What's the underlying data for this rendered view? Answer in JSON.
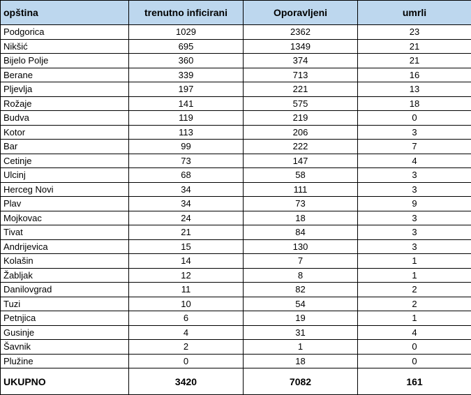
{
  "header": {
    "col1": "opština",
    "col2": "trenutno inficirani",
    "col3": "Oporavljeni",
    "col4": "umrli"
  },
  "rows": [
    {
      "opstina": "Podgorica",
      "inficirani": "1029",
      "oporavljeni": "2362",
      "umrli": "23"
    },
    {
      "opstina": "Nikšić",
      "inficirani": "695",
      "oporavljeni": "1349",
      "umrli": "21"
    },
    {
      "opstina": "Bijelo Polje",
      "inficirani": "360",
      "oporavljeni": "374",
      "umrli": "21"
    },
    {
      "opstina": "Berane",
      "inficirani": "339",
      "oporavljeni": "713",
      "umrli": "16"
    },
    {
      "opstina": "Pljevlja",
      "inficirani": "197",
      "oporavljeni": "221",
      "umrli": "13"
    },
    {
      "opstina": "Rožaje",
      "inficirani": "141",
      "oporavljeni": "575",
      "umrli": "18"
    },
    {
      "opstina": "Budva",
      "inficirani": "119",
      "oporavljeni": "219",
      "umrli": "0"
    },
    {
      "opstina": "Kotor",
      "inficirani": "113",
      "oporavljeni": "206",
      "umrli": "3"
    },
    {
      "opstina": "Bar",
      "inficirani": "99",
      "oporavljeni": "222",
      "umrli": "7"
    },
    {
      "opstina": "Cetinje",
      "inficirani": "73",
      "oporavljeni": "147",
      "umrli": "4"
    },
    {
      "opstina": "Ulcinj",
      "inficirani": "68",
      "oporavljeni": "58",
      "umrli": "3"
    },
    {
      "opstina": "Herceg Novi",
      "inficirani": "34",
      "oporavljeni": "111",
      "umrli": "3"
    },
    {
      "opstina": "Plav",
      "inficirani": "34",
      "oporavljeni": "73",
      "umrli": "9"
    },
    {
      "opstina": "Mojkovac",
      "inficirani": "24",
      "oporavljeni": "18",
      "umrli": "3"
    },
    {
      "opstina": "Tivat",
      "inficirani": "21",
      "oporavljeni": "84",
      "umrli": "3"
    },
    {
      "opstina": "Andrijevica",
      "inficirani": "15",
      "oporavljeni": "130",
      "umrli": "3"
    },
    {
      "opstina": "Kolašin",
      "inficirani": "14",
      "oporavljeni": "7",
      "umrli": "1"
    },
    {
      "opstina": "Žabljak",
      "inficirani": "12",
      "oporavljeni": "8",
      "umrli": "1"
    },
    {
      "opstina": "Danilovgrad",
      "inficirani": "11",
      "oporavljeni": "82",
      "umrli": "2"
    },
    {
      "opstina": "Tuzi",
      "inficirani": "10",
      "oporavljeni": "54",
      "umrli": "2"
    },
    {
      "opstina": "Petnjica",
      "inficirani": "6",
      "oporavljeni": "19",
      "umrli": "1"
    },
    {
      "opstina": "Gusinje",
      "inficirani": "4",
      "oporavljeni": "31",
      "umrli": "4"
    },
    {
      "opstina": "Šavnik",
      "inficirani": "2",
      "oporavljeni": "1",
      "umrli": "0"
    },
    {
      "opstina": "Plužine",
      "inficirani": "0",
      "oporavljeni": "18",
      "umrli": "0"
    }
  ],
  "total": {
    "label": "UKUPNO",
    "inficirani": "3420",
    "oporavljeni": "7082",
    "umrli": "161"
  },
  "colors": {
    "header_bg": "#bdd7ee",
    "border": "#000000"
  }
}
